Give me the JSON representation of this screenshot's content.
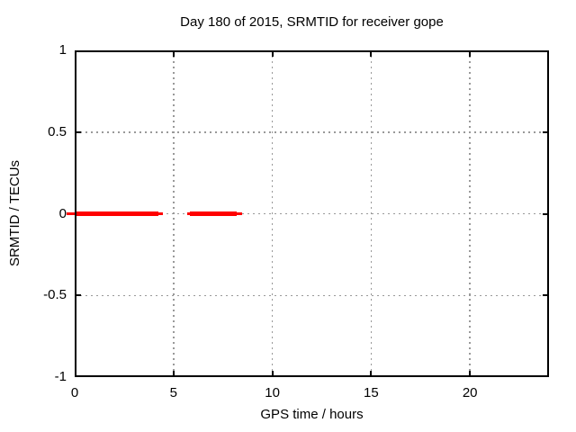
{
  "chart_data": {
    "type": "line",
    "title": "Day 180 of 2015, SRMTID for receiver gope",
    "xlabel": "GPS time / hours",
    "ylabel": "SRMTID / TECUs",
    "xlim": [
      0,
      24
    ],
    "ylim": [
      -1,
      1
    ],
    "xticks": [
      0,
      5,
      10,
      15,
      20
    ],
    "yticks": [
      -1,
      -0.5,
      0,
      0.5,
      1
    ],
    "grid": true,
    "legend_position": "none",
    "colors": {
      "series": "#ff0000",
      "grid": "#999999",
      "border": "#000000",
      "text": "#000000"
    },
    "series": [
      {
        "name": "SRMTID",
        "color": "#ff0000",
        "value_tecus": 0,
        "coverage_spans_hours": [
          [
            0,
            4.48
          ],
          [
            5.67,
            8.45
          ]
        ],
        "thick_segments_hours": [
          [
            0.02,
            4.23
          ],
          [
            5.85,
            8.22
          ]
        ],
        "thin_segments_hours": [
          [
            -0.43,
            0.02
          ],
          [
            4.23,
            4.48
          ],
          [
            5.67,
            5.85
          ],
          [
            8.22,
            8.45
          ]
        ]
      }
    ]
  }
}
